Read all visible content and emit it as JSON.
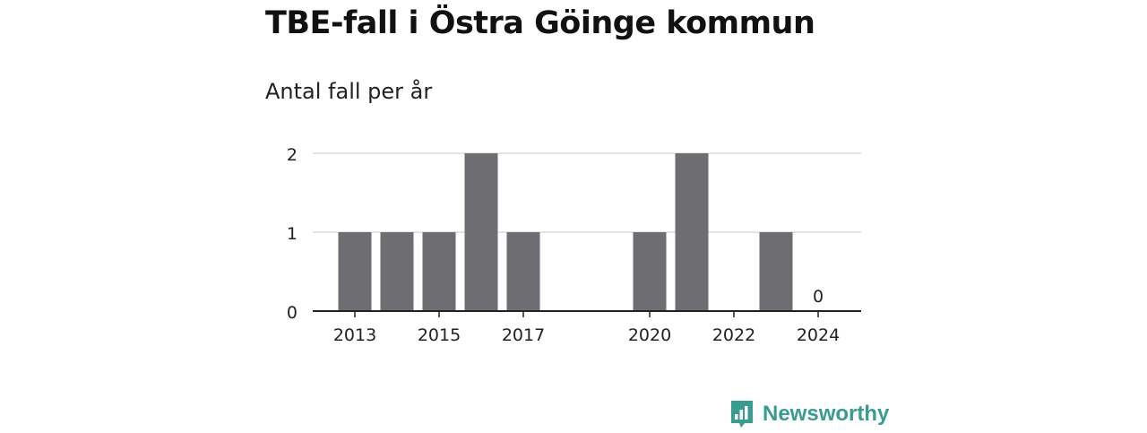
{
  "header": {
    "title": "TBE-fall i Östra Göinge kommun",
    "subtitle": "Antal fall per år"
  },
  "brand": {
    "name": "Newsworthy",
    "icon": "bar-chart-speech-bubble-icon",
    "color": "#3a9b91"
  },
  "chart_data": {
    "type": "bar",
    "title": "TBE-fall i Östra Göinge kommun",
    "subtitle": "Antal fall per år",
    "xlabel": "",
    "ylabel": "",
    "categories": [
      "2013",
      "2014",
      "2015",
      "2016",
      "2017",
      "2018",
      "2019",
      "2020",
      "2021",
      "2022",
      "2023",
      "2024"
    ],
    "values": [
      1,
      1,
      1,
      2,
      1,
      null,
      null,
      1,
      2,
      null,
      1,
      0
    ],
    "x_tick_labels": [
      "2013",
      "2015",
      "2017",
      "2020",
      "2022",
      "2024"
    ],
    "y_ticks": [
      0,
      1,
      2
    ],
    "ylim": [
      0,
      2
    ],
    "data_labels": [
      {
        "category": "2024",
        "text": "0"
      }
    ],
    "grid": true,
    "bar_color": "#6e6d72"
  }
}
